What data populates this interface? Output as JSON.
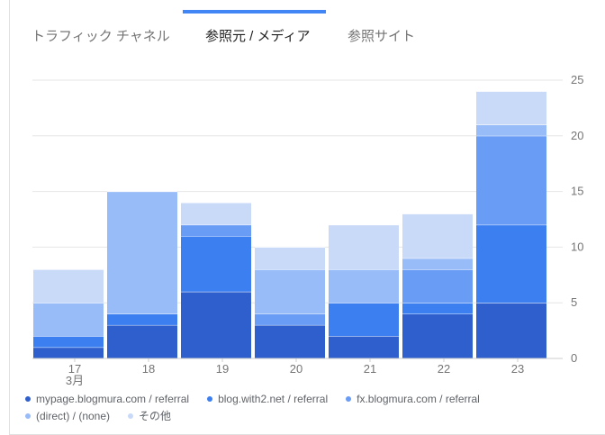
{
  "tabs": [
    {
      "label": "トラフィック チャネル",
      "active": false
    },
    {
      "label": "参照元 / メディア",
      "active": true
    },
    {
      "label": "参照サイト",
      "active": false
    }
  ],
  "chart_data": {
    "type": "bar",
    "stacked": true,
    "categories": [
      "17",
      "18",
      "19",
      "20",
      "21",
      "22",
      "23"
    ],
    "category_sublabels": [
      "3月",
      "",
      "",
      "",
      "",
      "",
      ""
    ],
    "ylim": [
      0,
      25
    ],
    "yticks": [
      0,
      5,
      10,
      15,
      20,
      25
    ],
    "grid": true,
    "legend_position": "bottom",
    "series": [
      {
        "name": "mypage.blogmura.com / referral",
        "color": "#2e5fcc",
        "values": [
          1,
          3,
          6,
          3,
          2,
          4,
          5
        ]
      },
      {
        "name": "blog.with2.net / referral",
        "color": "#3b7ff0",
        "values": [
          1,
          1,
          5,
          0,
          3,
          1,
          7
        ]
      },
      {
        "name": "fx.blogmura.com / referral",
        "color": "#699cf5",
        "values": [
          0,
          0,
          1,
          1,
          0,
          3,
          8
        ]
      },
      {
        "name": "(direct) / (none)",
        "color": "#98bcf8",
        "values": [
          3,
          11,
          0,
          4,
          3,
          1,
          1
        ]
      },
      {
        "name": "その他",
        "color": "#c9daf9",
        "values": [
          3,
          0,
          2,
          2,
          4,
          4,
          3
        ]
      }
    ]
  }
}
